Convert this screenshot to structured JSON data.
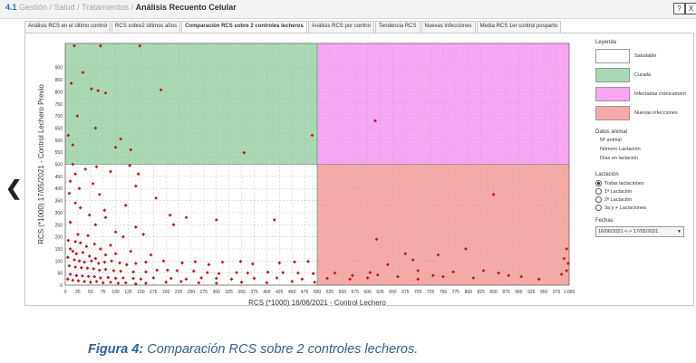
{
  "header": {
    "number": "4.1",
    "crumb1": "Gestión",
    "crumb2": "Salud / Tratamientos",
    "current": "Análisis Recuento Celular",
    "help_label": "?",
    "close_label": "X"
  },
  "tabs": [
    {
      "label": "Análisis RCS en el último control",
      "active": false
    },
    {
      "label": "RCS sobre2 últimos años",
      "active": false
    },
    {
      "label": "Comparación RCS sobre 2 controles lecheros",
      "active": true
    },
    {
      "label": "Análisis RCS por control",
      "active": false
    },
    {
      "label": "Tendencia RCS",
      "active": false
    },
    {
      "label": "Nuevas infecciones",
      "active": false
    },
    {
      "label": "Media RCS 1er control posparto",
      "active": false
    }
  ],
  "legend": {
    "title": "Leyenda",
    "items": [
      {
        "label": "Saludable",
        "color": "#ffffff"
      },
      {
        "label": "Curada",
        "color": "#a9d9b4"
      },
      {
        "label": "Infectadas crónicament",
        "color": "#f7a7f3"
      },
      {
        "label": "Nuevas infecciones",
        "color": "#f6aaa8"
      }
    ]
  },
  "animal_info": {
    "title": "Datos animal",
    "fields": [
      "Nº animal",
      "Número Lactación",
      "Días en lactación"
    ]
  },
  "lactation": {
    "title": "Lactación",
    "options": [
      {
        "label": "Todas lactaciones",
        "selected": true
      },
      {
        "label": "1ª Lactación",
        "selected": false
      },
      {
        "label": "2ª Lactación",
        "selected": false
      },
      {
        "label": "3a y + Lactaciones",
        "selected": false
      }
    ]
  },
  "dates": {
    "title": "Fechas",
    "value": "16/06/2021 <-> 17/05/2021"
  },
  "chart_data": {
    "type": "scatter",
    "xlabel": "RCS (*1000) 16/06/2021 - Control Lechero",
    "ylabel": "RCS (*1000) 17/05/2021 - Control Lechero Previo",
    "xlim": [
      0,
      1000
    ],
    "ylim": [
      0,
      1000
    ],
    "x_ticks": [
      0,
      25,
      50,
      75,
      100,
      125,
      150,
      175,
      200,
      225,
      250,
      275,
      300,
      325,
      350,
      375,
      400,
      425,
      450,
      475,
      500,
      525,
      550,
      575,
      600,
      625,
      650,
      675,
      700,
      725,
      750,
      775,
      800,
      825,
      850,
      875,
      900,
      925,
      950,
      975,
      1000
    ],
    "y_ticks": [
      0,
      50,
      100,
      150,
      200,
      250,
      300,
      350,
      400,
      450,
      500,
      550,
      600,
      650,
      700,
      750,
      800,
      850,
      900
    ],
    "threshold_x": 500,
    "threshold_y": 500,
    "regions": [
      {
        "name": "Saludable",
        "color": "#ffffff"
      },
      {
        "name": "Curada",
        "color": "#a9d9b4"
      },
      {
        "name": "Infectadas crónicament",
        "color": "#f7a7f3"
      },
      {
        "name": "Nuevas infecciones",
        "color": "#f6aaa8"
      }
    ],
    "point_color": "#c01818",
    "points": [
      [
        18,
        990
      ],
      [
        70,
        990
      ],
      [
        148,
        990
      ],
      [
        35,
        880
      ],
      [
        12,
        835
      ],
      [
        52,
        812
      ],
      [
        65,
        805
      ],
      [
        190,
        808
      ],
      [
        80,
        795
      ],
      [
        24,
        700
      ],
      [
        60,
        650
      ],
      [
        6,
        620
      ],
      [
        110,
        605
      ],
      [
        15,
        580
      ],
      [
        100,
        570
      ],
      [
        130,
        560
      ],
      [
        355,
        548
      ],
      [
        490,
        620
      ],
      [
        615,
        680
      ],
      [
        15,
        500
      ],
      [
        40,
        480
      ],
      [
        62,
        490
      ],
      [
        90,
        470
      ],
      [
        128,
        495
      ],
      [
        145,
        460
      ],
      [
        20,
        460
      ],
      [
        10,
        430
      ],
      [
        55,
        420
      ],
      [
        28,
        400
      ],
      [
        8,
        380
      ],
      [
        68,
        375
      ],
      [
        140,
        410
      ],
      [
        180,
        360
      ],
      [
        20,
        340
      ],
      [
        30,
        320
      ],
      [
        78,
        310
      ],
      [
        120,
        330
      ],
      [
        48,
        290
      ],
      [
        80,
        280
      ],
      [
        208,
        290
      ],
      [
        240,
        280
      ],
      [
        215,
        250
      ],
      [
        300,
        270
      ],
      [
        415,
        270
      ],
      [
        10,
        260
      ],
      [
        60,
        250
      ],
      [
        140,
        240
      ],
      [
        100,
        220
      ],
      [
        115,
        200
      ],
      [
        155,
        210
      ],
      [
        25,
        210
      ],
      [
        45,
        205
      ],
      [
        6,
        185
      ],
      [
        20,
        180
      ],
      [
        30,
        175
      ],
      [
        58,
        170
      ],
      [
        42,
        160
      ],
      [
        70,
        150
      ],
      [
        90,
        165
      ],
      [
        10,
        150
      ],
      [
        15,
        140
      ],
      [
        22,
        130
      ],
      [
        35,
        135
      ],
      [
        48,
        120
      ],
      [
        60,
        110
      ],
      [
        80,
        125
      ],
      [
        100,
        130
      ],
      [
        130,
        140
      ],
      [
        170,
        125
      ],
      [
        5,
        115
      ],
      [
        18,
        105
      ],
      [
        28,
        100
      ],
      [
        38,
        95
      ],
      [
        52,
        100
      ],
      [
        66,
        90
      ],
      [
        78,
        95
      ],
      [
        92,
        100
      ],
      [
        108,
        92
      ],
      [
        122,
        85
      ],
      [
        140,
        90
      ],
      [
        160,
        95
      ],
      [
        195,
        100
      ],
      [
        232,
        92
      ],
      [
        258,
        97
      ],
      [
        285,
        85
      ],
      [
        312,
        95
      ],
      [
        348,
        98
      ],
      [
        372,
        88
      ],
      [
        425,
        92
      ],
      [
        455,
        96
      ],
      [
        482,
        98
      ],
      [
        8,
        80
      ],
      [
        20,
        75
      ],
      [
        32,
        72
      ],
      [
        44,
        70
      ],
      [
        56,
        68
      ],
      [
        68,
        62
      ],
      [
        80,
        65
      ],
      [
        96,
        60
      ],
      [
        110,
        58
      ],
      [
        135,
        55
      ],
      [
        160,
        55
      ],
      [
        182,
        62
      ],
      [
        203,
        62
      ],
      [
        222,
        60
      ],
      [
        255,
        58
      ],
      [
        282,
        52
      ],
      [
        305,
        48
      ],
      [
        340,
        52
      ],
      [
        362,
        50
      ],
      [
        402,
        54
      ],
      [
        432,
        52
      ],
      [
        462,
        50
      ],
      [
        492,
        48
      ],
      [
        10,
        45
      ],
      [
        22,
        40
      ],
      [
        34,
        38
      ],
      [
        46,
        36
      ],
      [
        58,
        35
      ],
      [
        70,
        30
      ],
      [
        85,
        32
      ],
      [
        100,
        28
      ],
      [
        115,
        30
      ],
      [
        135,
        28
      ],
      [
        150,
        25
      ],
      [
        175,
        30
      ],
      [
        210,
        28
      ],
      [
        240,
        25
      ],
      [
        270,
        30
      ],
      [
        300,
        28
      ],
      [
        330,
        25
      ],
      [
        375,
        28
      ],
      [
        420,
        30
      ],
      [
        470,
        25
      ],
      [
        5,
        25
      ],
      [
        15,
        20
      ],
      [
        26,
        18
      ],
      [
        38,
        15
      ],
      [
        50,
        12
      ],
      [
        62,
        15
      ],
      [
        75,
        10
      ],
      [
        90,
        12
      ],
      [
        105,
        8
      ],
      [
        120,
        10
      ],
      [
        140,
        5
      ],
      [
        160,
        8
      ],
      [
        200,
        12
      ],
      [
        230,
        15
      ],
      [
        265,
        10
      ],
      [
        300,
        8
      ],
      [
        350,
        12
      ],
      [
        400,
        10
      ],
      [
        450,
        15
      ],
      [
        495,
        12
      ],
      [
        520,
        28
      ],
      [
        535,
        50
      ],
      [
        570,
        40
      ],
      [
        565,
        25
      ],
      [
        600,
        30
      ],
      [
        620,
        42
      ],
      [
        660,
        35
      ],
      [
        700,
        25
      ],
      [
        730,
        40
      ],
      [
        770,
        55
      ],
      [
        830,
        60
      ],
      [
        860,
        50
      ],
      [
        880,
        40
      ],
      [
        905,
        35
      ],
      [
        940,
        25
      ],
      [
        985,
        45
      ],
      [
        995,
        60
      ],
      [
        998,
        90
      ],
      [
        990,
        110
      ],
      [
        995,
        150
      ],
      [
        850,
        375
      ],
      [
        740,
        125
      ],
      [
        690,
        105
      ],
      [
        640,
        85
      ],
      [
        795,
        150
      ],
      [
        618,
        190
      ],
      [
        675,
        130
      ],
      [
        605,
        52
      ],
      [
        700,
        60
      ],
      [
        750,
        35
      ],
      [
        810,
        30
      ]
    ]
  },
  "caption": {
    "bold": "Figura 4:",
    "text": "Comparación RCS sobre 2 controles lecheros."
  }
}
